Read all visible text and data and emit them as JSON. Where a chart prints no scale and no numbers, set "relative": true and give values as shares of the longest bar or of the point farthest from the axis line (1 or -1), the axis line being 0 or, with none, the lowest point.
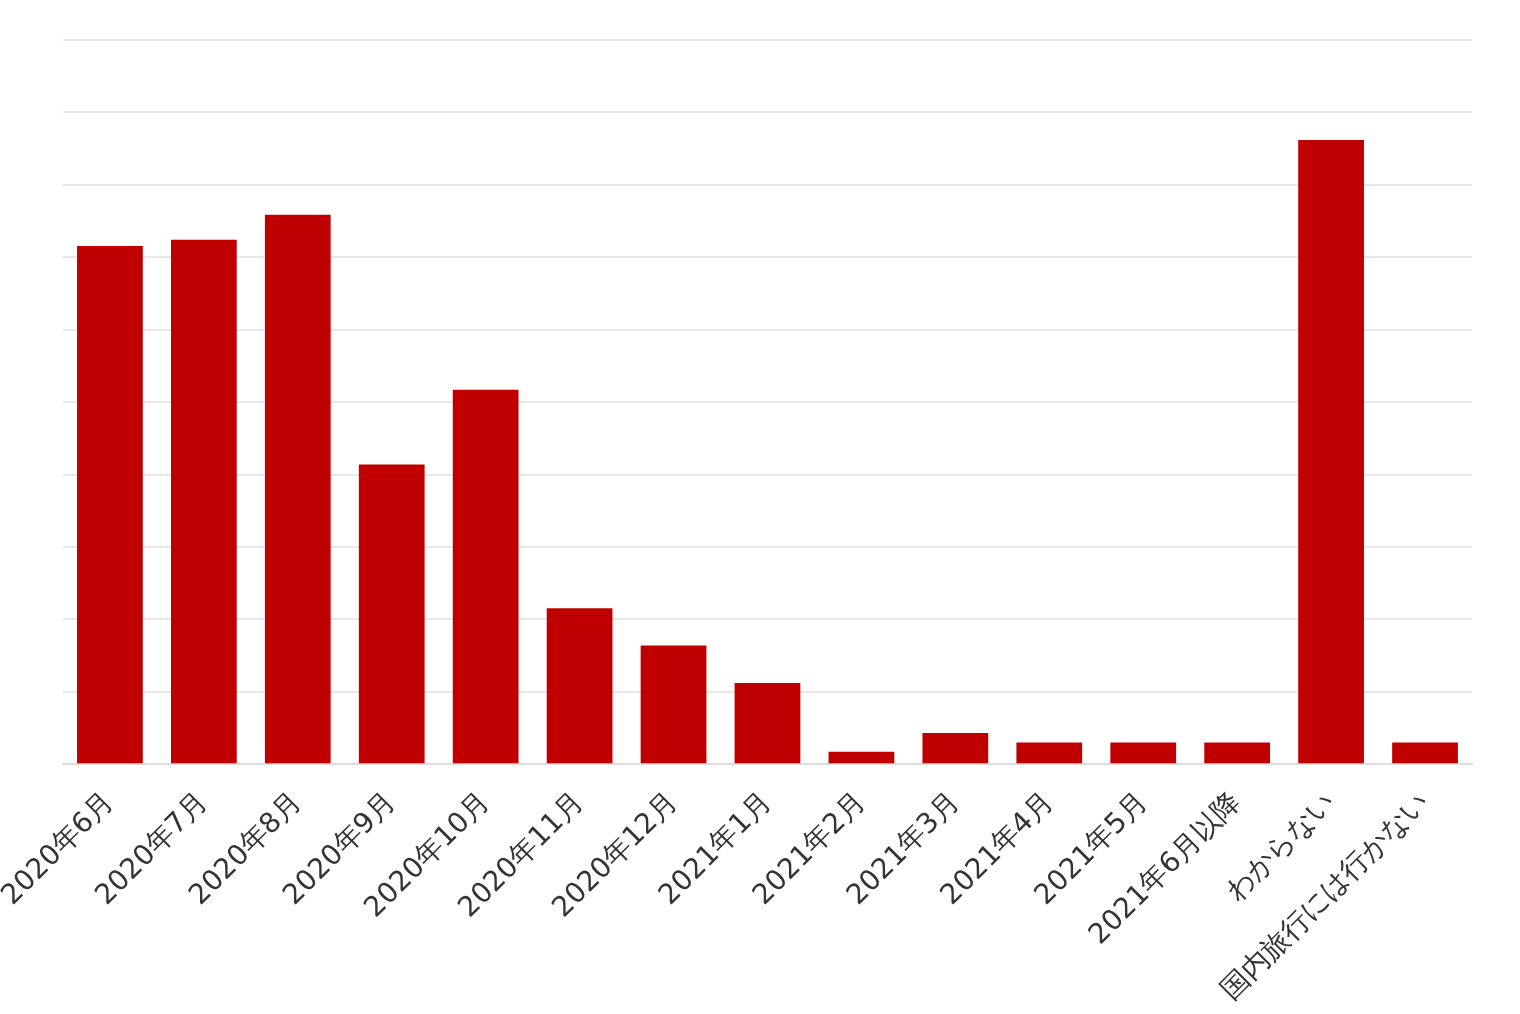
{
  "chart_data": {
    "type": "bar",
    "relative": true,
    "grid": "y",
    "categories": [
      "2020年6月",
      "2020年7月",
      "2020年8月",
      "2020年9月",
      "2020年10月",
      "2020年11月",
      "2020年12月",
      "2021年1月",
      "2021年2月",
      "2021年3月",
      "2021年4月",
      "2021年5月",
      "2021年6月以降",
      "わからない",
      "国内旅行には行かない"
    ],
    "values": [
      0.83,
      0.84,
      0.88,
      0.48,
      0.6,
      0.25,
      0.19,
      0.13,
      0.02,
      0.05,
      0.035,
      0.035,
      0.035,
      1,
      0.035
    ],
    "color": "#c00000"
  }
}
